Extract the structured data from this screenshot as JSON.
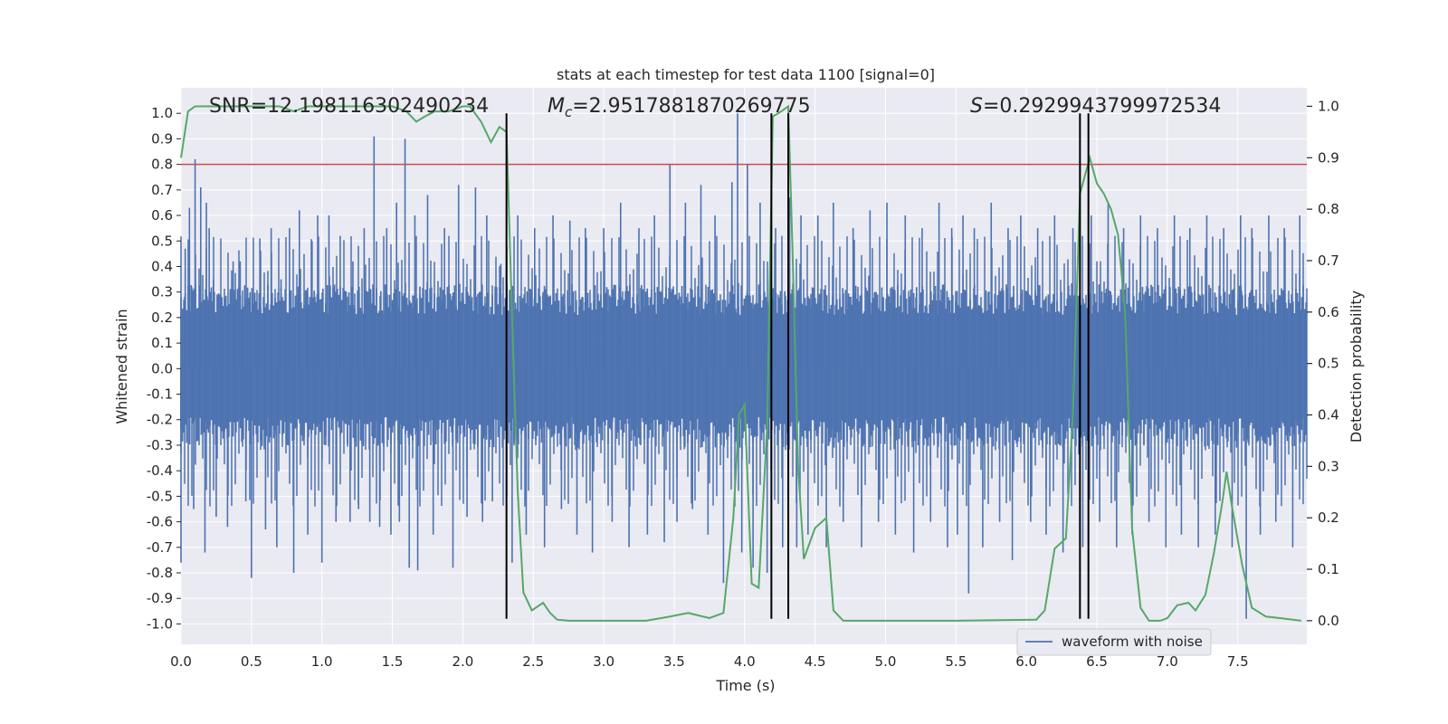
{
  "chart_data": {
    "type": "line",
    "title": "stats at each timestep for test data 1100 [signal=0]",
    "xlabel": "Time (s)",
    "ylabel_left": "Whitened strain",
    "ylabel_right": "Detection probability",
    "xlim": [
      0.0,
      7.99
    ],
    "ylim_left": [
      -1.08,
      1.1
    ],
    "ylim_right": [
      -0.046,
      1.036
    ],
    "x_ticks": [
      0.0,
      0.5,
      1.0,
      1.5,
      2.0,
      2.5,
      3.0,
      3.5,
      4.0,
      4.5,
      5.0,
      5.5,
      6.0,
      6.5,
      7.0,
      7.5
    ],
    "x_tick_labels": [
      "0.0",
      "0.5",
      "1.0",
      "1.5",
      "2.0",
      "2.5",
      "3.0",
      "3.5",
      "4.0",
      "4.5",
      "5.0",
      "5.5",
      "6.0",
      "6.5",
      "7.0",
      "7.5"
    ],
    "left_ticks": [
      1.0,
      0.9,
      0.8,
      0.7,
      0.6,
      0.5,
      0.4,
      0.3,
      0.2,
      0.1,
      0.0,
      -0.1,
      -0.2,
      -0.3,
      -0.4,
      -0.5,
      -0.6,
      -0.7,
      -0.8,
      -0.9,
      -1.0
    ],
    "left_tick_labels": [
      "1.0",
      "0.9",
      "0.8",
      "0.7",
      "0.6",
      "0.5",
      "0.4",
      "0.3",
      "0.2",
      "0.1",
      "0.0",
      "-0.1",
      "-0.2",
      "-0.3",
      "-0.4",
      "-0.5",
      "-0.6",
      "-0.7",
      "-0.8",
      "-0.9",
      "-1.0"
    ],
    "right_ticks": [
      1.0,
      0.9,
      0.8,
      0.7,
      0.6,
      0.5,
      0.4,
      0.3,
      0.2,
      0.1,
      0.0
    ],
    "right_tick_labels": [
      "1.0",
      "0.9",
      "0.8",
      "0.7",
      "0.6",
      "0.5",
      "0.4",
      "0.3",
      "0.2",
      "0.1",
      "0.0"
    ],
    "threshold": {
      "axis": "left",
      "value": 0.8,
      "color": "#c44e52"
    },
    "vertical_markers": [
      2.31,
      4.19,
      4.31,
      6.38,
      6.44
    ],
    "vertical_marker_range_left": [
      -0.98,
      1.0
    ],
    "annotations": [
      {
        "text": "SNR=12.198116302490234",
        "x": 0.19
      },
      {
        "text": "=2.9517881870269775",
        "symbol": "M",
        "subscript": "c",
        "x": 2.6
      },
      {
        "text": "=0.2929943799972534",
        "symbol": "S",
        "x": 5.6
      }
    ],
    "series": [
      {
        "name": "waveform with noise",
        "axis": "left",
        "color": "#4c72b0",
        "dense_band": {
          "upper": 0.21,
          "lower": -0.19
        },
        "spike_points": [
          [
            0.0,
            -0.76
          ],
          [
            0.03,
            0.47
          ],
          [
            0.06,
            0.63
          ],
          [
            0.09,
            -0.55
          ],
          [
            0.1,
            0.82
          ],
          [
            0.14,
            0.71
          ],
          [
            0.17,
            -0.72
          ],
          [
            0.18,
            0.65
          ],
          [
            0.2,
            0.55
          ],
          [
            0.23,
            0.35
          ],
          [
            0.25,
            -0.58
          ],
          [
            0.29,
            0.28
          ],
          [
            0.33,
            -0.62
          ],
          [
            0.37,
            0.42
          ],
          [
            0.42,
            0.42
          ],
          [
            0.46,
            -0.52
          ],
          [
            0.49,
            0.3
          ],
          [
            0.5,
            -0.82
          ],
          [
            0.56,
            0.51
          ],
          [
            0.6,
            -0.63
          ],
          [
            0.64,
            0.55
          ],
          [
            0.68,
            -0.7
          ],
          [
            0.71,
            0.35
          ],
          [
            0.77,
            0.55
          ],
          [
            0.8,
            -0.8
          ],
          [
            0.84,
            0.62
          ],
          [
            0.9,
            -0.65
          ],
          [
            0.93,
            0.5
          ],
          [
            0.97,
            0.6
          ],
          [
            1.0,
            -0.76
          ],
          [
            1.05,
            0.6
          ],
          [
            1.1,
            -0.6
          ],
          [
            1.13,
            0.52
          ],
          [
            1.2,
            -0.6
          ],
          [
            1.22,
            0.42
          ],
          [
            1.26,
            -0.55
          ],
          [
            1.3,
            0.55
          ],
          [
            1.34,
            -0.6
          ],
          [
            1.37,
            0.91
          ],
          [
            1.41,
            -0.62
          ],
          [
            1.46,
            0.55
          ],
          [
            1.49,
            -0.65
          ],
          [
            1.53,
            0.65
          ],
          [
            1.55,
            -0.6
          ],
          [
            1.59,
            0.9
          ],
          [
            1.62,
            -0.78
          ],
          [
            1.66,
            0.6
          ],
          [
            1.68,
            -0.79
          ],
          [
            1.75,
            0.68
          ],
          [
            1.79,
            -0.65
          ],
          [
            1.87,
            0.55
          ],
          [
            1.93,
            -0.78
          ],
          [
            1.97,
            0.72
          ],
          [
            2.03,
            -0.58
          ],
          [
            2.09,
            0.71
          ],
          [
            2.14,
            -0.6
          ],
          [
            2.17,
            0.6
          ],
          [
            2.21,
            -0.52
          ],
          [
            2.27,
            0.41
          ],
          [
            2.35,
            -0.76
          ],
          [
            2.39,
            0.6
          ],
          [
            2.45,
            -0.65
          ],
          [
            2.51,
            0.55
          ],
          [
            2.58,
            -0.7
          ],
          [
            2.64,
            0.6
          ],
          [
            2.7,
            -0.55
          ],
          [
            2.76,
            0.58
          ],
          [
            2.81,
            -0.65
          ],
          [
            2.87,
            0.55
          ],
          [
            2.92,
            -0.72
          ],
          [
            3.0,
            0.55
          ],
          [
            3.06,
            -0.6
          ],
          [
            3.12,
            0.65
          ],
          [
            3.18,
            -0.7
          ],
          [
            3.25,
            0.55
          ],
          [
            3.31,
            -0.65
          ],
          [
            3.36,
            0.6
          ],
          [
            3.43,
            -0.68
          ],
          [
            3.47,
            0.8
          ],
          [
            3.52,
            -0.6
          ],
          [
            3.58,
            0.65
          ],
          [
            3.63,
            -0.55
          ],
          [
            3.69,
            0.72
          ],
          [
            3.74,
            -0.65
          ],
          [
            3.79,
            0.6
          ],
          [
            3.85,
            -0.84
          ],
          [
            3.91,
            0.73
          ],
          [
            3.95,
            1.0
          ],
          [
            3.98,
            -0.72
          ],
          [
            4.02,
            0.8
          ],
          [
            4.06,
            -0.78
          ],
          [
            4.11,
            0.65
          ],
          [
            4.16,
            -0.8
          ],
          [
            4.22,
            0.55
          ],
          [
            4.27,
            -0.7
          ],
          [
            4.32,
            0.67
          ],
          [
            4.37,
            -0.7
          ],
          [
            4.4,
            0.6
          ],
          [
            4.45,
            -0.65
          ],
          [
            4.52,
            0.6
          ],
          [
            4.58,
            -0.7
          ],
          [
            4.63,
            0.65
          ],
          [
            4.7,
            -0.6
          ],
          [
            4.77,
            0.55
          ],
          [
            4.83,
            -0.7
          ],
          [
            4.89,
            0.62
          ],
          [
            4.95,
            -0.6
          ],
          [
            5.01,
            0.65
          ],
          [
            5.07,
            -0.65
          ],
          [
            5.14,
            0.6
          ],
          [
            5.2,
            -0.72
          ],
          [
            5.26,
            0.55
          ],
          [
            5.32,
            -0.6
          ],
          [
            5.38,
            0.65
          ],
          [
            5.44,
            -0.7
          ],
          [
            5.47,
            0.55
          ],
          [
            5.51,
            -0.65
          ],
          [
            5.55,
            0.6
          ],
          [
            5.59,
            -0.88
          ],
          [
            5.63,
            0.55
          ],
          [
            5.69,
            -0.7
          ],
          [
            5.75,
            0.65
          ],
          [
            5.81,
            -0.6
          ],
          [
            5.87,
            0.55
          ],
          [
            5.9,
            -0.75
          ],
          [
            5.96,
            0.6
          ],
          [
            6.03,
            -0.6
          ],
          [
            6.08,
            0.55
          ],
          [
            6.14,
            -0.65
          ],
          [
            6.2,
            0.6
          ],
          [
            6.26,
            -0.72
          ],
          [
            6.33,
            0.55
          ],
          [
            6.4,
            -0.7
          ],
          [
            6.46,
            0.6
          ],
          [
            6.52,
            -0.6
          ],
          [
            6.58,
            0.65
          ],
          [
            6.64,
            -0.7
          ],
          [
            6.69,
            0.55
          ],
          [
            6.75,
            -0.65
          ],
          [
            6.81,
            0.6
          ],
          [
            6.87,
            -0.6
          ],
          [
            6.93,
            0.55
          ],
          [
            6.99,
            -0.7
          ],
          [
            7.05,
            0.6
          ],
          [
            7.1,
            -0.65
          ],
          [
            7.16,
            0.55
          ],
          [
            7.22,
            -0.7
          ],
          [
            7.28,
            0.6
          ],
          [
            7.34,
            -0.65
          ],
          [
            7.4,
            0.55
          ],
          [
            7.46,
            -0.7
          ],
          [
            7.52,
            0.6
          ],
          [
            7.56,
            -0.98
          ],
          [
            7.6,
            0.55
          ],
          [
            7.66,
            -0.65
          ],
          [
            7.72,
            0.6
          ],
          [
            7.77,
            -0.6
          ],
          [
            7.83,
            0.55
          ],
          [
            7.89,
            -0.7
          ],
          [
            7.94,
            0.6
          ]
        ]
      },
      {
        "name": "detection probability",
        "axis": "right",
        "color": "#55a868",
        "x": [
          0.0,
          0.05,
          0.1,
          0.2,
          0.3,
          0.5,
          0.7,
          0.8,
          0.9,
          1.1,
          1.3,
          1.5,
          1.6,
          1.67,
          1.73,
          1.8,
          1.9,
          2.0,
          2.05,
          2.13,
          2.2,
          2.26,
          2.31,
          2.36,
          2.39,
          2.43,
          2.49,
          2.57,
          2.62,
          2.67,
          2.75,
          3.0,
          3.3,
          3.45,
          3.6,
          3.75,
          3.85,
          3.92,
          3.96,
          4.0,
          4.05,
          4.1,
          4.16,
          4.2,
          4.26,
          4.31,
          4.34,
          4.38,
          4.42,
          4.5,
          4.58,
          4.63,
          4.7,
          5.0,
          5.5,
          6.07,
          6.13,
          6.2,
          6.28,
          6.33,
          6.38,
          6.45,
          6.5,
          6.55,
          6.6,
          6.65,
          6.7,
          6.75,
          6.81,
          6.87,
          6.95,
          7.0,
          7.07,
          7.15,
          7.2,
          7.27,
          7.33,
          7.39,
          7.42,
          7.46,
          7.53,
          7.6,
          7.7,
          7.8,
          7.95
        ],
        "y": [
          0.9,
          0.99,
          1.0,
          1.0,
          1.0,
          1.0,
          1.0,
          0.99,
          1.0,
          1.0,
          1.0,
          1.0,
          0.99,
          0.97,
          0.98,
          0.99,
          0.99,
          1.0,
          1.0,
          0.97,
          0.93,
          0.96,
          0.95,
          0.5,
          0.25,
          0.055,
          0.02,
          0.035,
          0.015,
          0.002,
          0.0,
          0.0,
          0.0,
          0.007,
          0.015,
          0.005,
          0.015,
          0.2,
          0.4,
          0.42,
          0.072,
          0.064,
          0.38,
          0.98,
          0.99,
          1.0,
          0.72,
          0.3,
          0.12,
          0.18,
          0.2,
          0.02,
          0.0,
          0.0,
          0.0,
          0.002,
          0.02,
          0.14,
          0.16,
          0.4,
          0.83,
          0.9,
          0.85,
          0.83,
          0.8,
          0.75,
          0.6,
          0.18,
          0.025,
          0.0,
          0.0,
          0.005,
          0.03,
          0.035,
          0.02,
          0.05,
          0.13,
          0.23,
          0.29,
          0.22,
          0.11,
          0.025,
          0.008,
          0.005,
          0.0
        ]
      }
    ],
    "legend": {
      "entries": [
        "waveform with noise"
      ],
      "location": "lower-right"
    }
  }
}
